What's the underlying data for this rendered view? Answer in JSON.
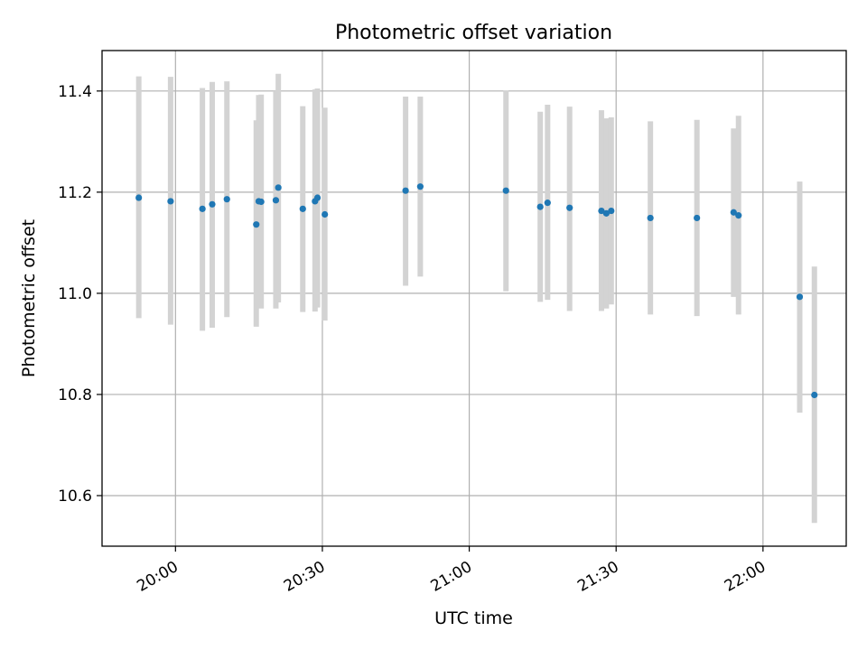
{
  "chart_data": {
    "type": "scatter",
    "title": "Photometric offset variation",
    "xlabel": "UTC time",
    "ylabel": "Photometric offset",
    "x_unit": "UTC time (HH:MM)",
    "xlim": [
      "19:45",
      "22:17"
    ],
    "ylim": [
      10.5,
      11.48
    ],
    "x_ticks": [
      "20:00",
      "20:30",
      "21:00",
      "21:30",
      "22:00"
    ],
    "y_ticks": [
      10.6,
      10.8,
      11.0,
      11.2,
      11.4
    ],
    "y_tick_labels": [
      "10.6",
      "10.8",
      "11.0",
      "11.2",
      "11.4"
    ],
    "grid": true,
    "legend": false,
    "colors": {
      "marker": "#1f77b4",
      "errorbar": "#d3d3d3",
      "grid": "#b0b0b0",
      "axes": "#000000"
    },
    "series": [
      {
        "points": [
          {
            "x": "19:52:30",
            "y": 11.189,
            "ylow": 10.951,
            "yhigh": 11.429
          },
          {
            "x": "19:59:00",
            "y": 11.182,
            "ylow": 10.938,
            "yhigh": 11.428
          },
          {
            "x": "20:05:30",
            "y": 11.167,
            "ylow": 10.926,
            "yhigh": 11.406
          },
          {
            "x": "20:07:30",
            "y": 11.176,
            "ylow": 10.932,
            "yhigh": 11.418
          },
          {
            "x": "20:10:30",
            "y": 11.186,
            "ylow": 10.953,
            "yhigh": 11.419
          },
          {
            "x": "20:16:30",
            "y": 11.136,
            "ylow": 10.934,
            "yhigh": 11.342
          },
          {
            "x": "20:17:00",
            "y": 11.182,
            "ylow": 10.971,
            "yhigh": 11.392
          },
          {
            "x": "20:17:30",
            "y": 11.181,
            "ylow": 10.97,
            "yhigh": 11.393
          },
          {
            "x": "20:20:30",
            "y": 11.184,
            "ylow": 10.97,
            "yhigh": 11.4
          },
          {
            "x": "20:21:00",
            "y": 11.209,
            "ylow": 10.982,
            "yhigh": 11.434
          },
          {
            "x": "20:26:00",
            "y": 11.167,
            "ylow": 10.963,
            "yhigh": 11.37
          },
          {
            "x": "20:28:30",
            "y": 11.182,
            "ylow": 10.964,
            "yhigh": 11.403
          },
          {
            "x": "20:29:00",
            "y": 11.189,
            "ylow": 10.972,
            "yhigh": 11.405
          },
          {
            "x": "20:30:30",
            "y": 11.156,
            "ylow": 10.946,
            "yhigh": 11.367
          },
          {
            "x": "20:47:00",
            "y": 11.203,
            "ylow": 11.015,
            "yhigh": 11.389
          },
          {
            "x": "20:50:00",
            "y": 11.211,
            "ylow": 11.033,
            "yhigh": 11.389
          },
          {
            "x": "21:07:30",
            "y": 11.203,
            "ylow": 11.004,
            "yhigh": 11.401
          },
          {
            "x": "21:14:30",
            "y": 11.171,
            "ylow": 10.983,
            "yhigh": 11.359
          },
          {
            "x": "21:16:00",
            "y": 11.179,
            "ylow": 10.987,
            "yhigh": 11.373
          },
          {
            "x": "21:20:30",
            "y": 11.169,
            "ylow": 10.965,
            "yhigh": 11.369
          },
          {
            "x": "21:27:00",
            "y": 11.163,
            "ylow": 10.965,
            "yhigh": 11.362
          },
          {
            "x": "21:28:00",
            "y": 11.158,
            "ylow": 10.97,
            "yhigh": 11.346
          },
          {
            "x": "21:29:00",
            "y": 11.163,
            "ylow": 10.978,
            "yhigh": 11.348
          },
          {
            "x": "21:37:00",
            "y": 11.149,
            "ylow": 10.958,
            "yhigh": 11.34
          },
          {
            "x": "21:46:30",
            "y": 11.149,
            "ylow": 10.955,
            "yhigh": 11.343
          },
          {
            "x": "21:54:00",
            "y": 11.16,
            "ylow": 10.993,
            "yhigh": 11.326
          },
          {
            "x": "21:55:00",
            "y": 11.154,
            "ylow": 10.958,
            "yhigh": 11.351
          },
          {
            "x": "22:07:30",
            "y": 10.993,
            "ylow": 10.764,
            "yhigh": 11.221
          },
          {
            "x": "22:10:30",
            "y": 10.799,
            "ylow": 10.546,
            "yhigh": 11.053
          }
        ]
      }
    ]
  }
}
